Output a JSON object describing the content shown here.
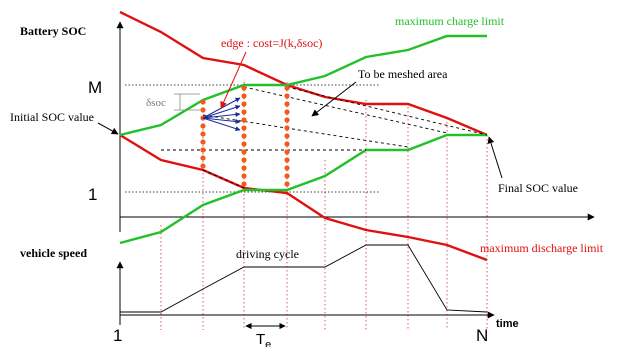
{
  "labels": {
    "battery_soc": "Battery SOC",
    "edge_cost_prefix": "edge : cost=J(k,",
    "edge_cost_delta": "δ",
    "edge_cost_suffix": "soc)",
    "maximum_charge_limit": "maximum charge limit",
    "to_be_meshed_area": "To be meshed area",
    "initial_soc_value": "Initial SOC value",
    "delta_soc": "δsoc",
    "final_soc_value": "Final SOC value",
    "vehicle_speed": "vehicle speed",
    "driving_cycle": "driving cycle",
    "maximum_discharge_limit": "maximum discharge limit",
    "time": "time",
    "soc_max": "M",
    "soc_min": "1",
    "time_start": "1",
    "time_end": "N",
    "step_period": "T",
    "step_period_sub": "e"
  },
  "colors": {
    "charge_limit": "#22c02a",
    "discharge_limit": "#e01010",
    "grid_points": "#f05a1e",
    "edge_arrows": "#1a2a9a",
    "axes": "#000000",
    "guides": "#d03030"
  }
}
